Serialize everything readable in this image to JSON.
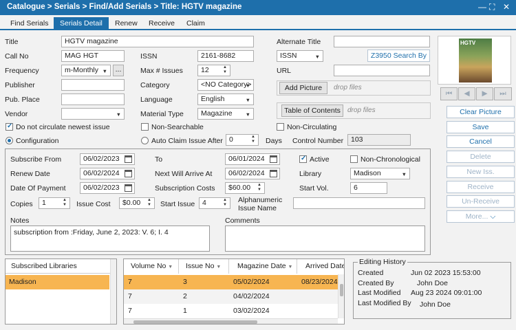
{
  "window": {
    "title": "Catalogue > Serials > Find/Add Serials > Title: HGTV magazine",
    "controls": [
      "minimize-icon",
      "restore-icon",
      "close-icon"
    ]
  },
  "tabs": [
    "Find Serials",
    "Serials Detail",
    "Renew",
    "Receive",
    "Claim"
  ],
  "active_tab": "Serials Detail",
  "form": {
    "title_label": "Title",
    "title_value": "HGTV magazine",
    "alt_title_label": "Alternate Title",
    "alt_title_value": "",
    "callno_label": "Call No",
    "callno_value": "MAG HGT",
    "issn_label": "ISSN",
    "issn_value": "2161-8682",
    "issn_type": "ISSN",
    "z3950_button": "Z3950 Search By",
    "frequency_label": "Frequency",
    "frequency_value": "m-Monthly",
    "frequency_more": "...",
    "maxissues_label": "Max # Issues",
    "maxissues_value": "12",
    "url_label": "URL",
    "url_value": "",
    "publisher_label": "Publisher",
    "publisher_value": "",
    "category_label": "Category",
    "category_value": "<NO Category>",
    "add_picture_button": "Add Picture",
    "drop_files_1": "drop files",
    "pubplace_label": "Pub. Place",
    "pubplace_value": "",
    "language_label": "Language",
    "language_value": "English",
    "vendor_label": "Vendor",
    "vendor_value": "",
    "material_label": "Material Type",
    "material_value": "Magazine",
    "toc_button": "Table of Contents",
    "drop_files_2": "drop files",
    "no_circ_newest_label": "Do not circulate newest issue",
    "no_circ_newest_checked": true,
    "non_searchable_label": "Non-Searchable",
    "non_searchable_checked": false,
    "non_circulating_label": "Non-Circulating",
    "non_circulating_checked": false,
    "configuration_label": "Configuration",
    "configuration_selected": true,
    "auto_claim_label": "Auto Claim Issue After",
    "auto_claim_selected": false,
    "auto_claim_value": "0",
    "days_label": "Days",
    "control_number_label": "Control Number",
    "control_number_value": "103"
  },
  "subscription": {
    "subscribe_from_label": "Subscribe From",
    "subscribe_from_value": "06/02/2023",
    "to_label": "To",
    "to_value": "06/01/2024",
    "active_label": "Active",
    "active_checked": true,
    "non_chrono_label": "Non-Chronological",
    "non_chrono_checked": false,
    "renew_date_label": "Renew Date",
    "renew_date_value": "06/02/2024",
    "next_arrive_label": "Next Will Arrive At",
    "next_arrive_value": "06/02/2024",
    "library_label": "Library",
    "library_value": "Madison",
    "payment_label": "Date Of Payment",
    "payment_value": "06/02/2023",
    "sub_cost_label": "Subscription Costs",
    "sub_cost_value": "$60.00",
    "start_vol_label": "Start Vol.",
    "start_vol_value": "6",
    "copies_label": "Copies",
    "copies_value": "1",
    "issue_cost_label": "Issue Cost",
    "issue_cost_value": "$0.00",
    "start_issue_label": "Start Issue",
    "start_issue_value": "4",
    "alnum_label_1": "Alphanumeric",
    "alnum_label_2": "Issue Name",
    "alnum_value": "",
    "notes_label": "Notes",
    "notes_value": "subscription from :Friday, June 2, 2023: V. 6; I. 4",
    "comments_label": "Comments",
    "comments_value": ""
  },
  "right_panel": {
    "clear_picture": "Clear Picture",
    "save": "Save",
    "cancel": "Cancel",
    "delete": "Delete",
    "new_iss": "New Iss.",
    "receive": "Receive",
    "unreceive": "Un-Receive",
    "more": "More...",
    "nav_icons": [
      "first-icon",
      "prev-icon",
      "next-icon",
      "last-icon"
    ],
    "cover_alt": "HGTV magazine cover"
  },
  "subscribed_libraries": {
    "header": "Subscribed Libraries",
    "items": [
      "Madison"
    ]
  },
  "issues_table": {
    "columns": [
      "Volume No",
      "Issue No",
      "Magazine Date",
      "Arrived Date"
    ],
    "rows": [
      [
        "7",
        "3",
        "05/02/2024",
        "08/23/2024"
      ],
      [
        "7",
        "2",
        "04/02/2024",
        ""
      ],
      [
        "7",
        "1",
        "03/02/2024",
        ""
      ]
    ]
  },
  "editing_history": {
    "legend": "Editing History",
    "created_label": "Created",
    "created_value": "Jun 02 2023 15:53:00",
    "created_by_label": "Created By",
    "created_by_value": "John Doe",
    "modified_label": "Last Modified",
    "modified_value": "Aug 23 2024 09:01:00",
    "modified_by_label": "Last Modified By",
    "modified_by_value": "John Doe"
  },
  "colors": {
    "accent": "#1e6fab",
    "selected_row": "#f7b551",
    "background": "#f2f2f2"
  }
}
